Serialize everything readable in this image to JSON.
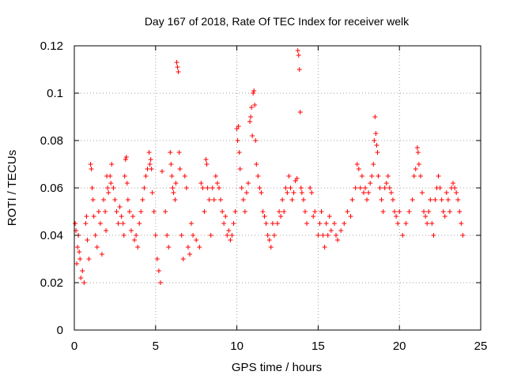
{
  "chart_data": {
    "type": "scatter",
    "title": "Day 167 of 2018, Rate Of TEC Index for receiver welk",
    "xlabel": "GPS time / hours",
    "ylabel": "ROTI / TECUs",
    "xlim": [
      0,
      25
    ],
    "ylim": [
      0,
      0.12
    ],
    "x_ticks": [
      0,
      5,
      10,
      15,
      20,
      25
    ],
    "x_tick_labels": [
      "0",
      "5",
      "10",
      "15",
      "20",
      "25"
    ],
    "y_ticks": [
      0,
      0.02,
      0.04,
      0.06,
      0.08,
      0.1,
      0.12
    ],
    "y_tick_labels": [
      "0",
      "0.02",
      "0.04",
      "0.06",
      "0.08",
      "0.1",
      "0.12"
    ],
    "grid": true,
    "marker": "+",
    "color": "#ff0000",
    "series": [
      {
        "name": "ROTI",
        "points": [
          [
            0.05,
            0.045
          ],
          [
            0.1,
            0.042
          ],
          [
            0.15,
            0.028
          ],
          [
            0.2,
            0.035
          ],
          [
            0.25,
            0.04
          ],
          [
            0.3,
            0.033
          ],
          [
            0.35,
            0.03
          ],
          [
            0.4,
            0.022
          ],
          [
            0.5,
            0.025
          ],
          [
            0.6,
            0.02
          ],
          [
            0.7,
            0.045
          ],
          [
            0.75,
            0.048
          ],
          [
            0.8,
            0.038
          ],
          [
            0.9,
            0.03
          ],
          [
            1.0,
            0.07
          ],
          [
            1.05,
            0.068
          ],
          [
            1.1,
            0.06
          ],
          [
            1.15,
            0.055
          ],
          [
            1.2,
            0.048
          ],
          [
            1.3,
            0.04
          ],
          [
            1.4,
            0.035
          ],
          [
            1.5,
            0.05
          ],
          [
            1.6,
            0.045
          ],
          [
            1.7,
            0.032
          ],
          [
            1.8,
            0.055
          ],
          [
            1.9,
            0.05
          ],
          [
            1.95,
            0.042
          ],
          [
            2.0,
            0.065
          ],
          [
            2.05,
            0.06
          ],
          [
            2.1,
            0.058
          ],
          [
            2.2,
            0.065
          ],
          [
            2.25,
            0.062
          ],
          [
            2.3,
            0.07
          ],
          [
            2.4,
            0.06
          ],
          [
            2.5,
            0.055
          ],
          [
            2.6,
            0.05
          ],
          [
            2.7,
            0.045
          ],
          [
            2.8,
            0.052
          ],
          [
            2.9,
            0.048
          ],
          [
            3.0,
            0.045
          ],
          [
            3.05,
            0.04
          ],
          [
            3.1,
            0.065
          ],
          [
            3.15,
            0.072
          ],
          [
            3.2,
            0.073
          ],
          [
            3.25,
            0.062
          ],
          [
            3.3,
            0.055
          ],
          [
            3.4,
            0.05
          ],
          [
            3.5,
            0.042
          ],
          [
            3.6,
            0.048
          ],
          [
            3.7,
            0.038
          ],
          [
            3.8,
            0.04
          ],
          [
            3.9,
            0.035
          ],
          [
            4.0,
            0.045
          ],
          [
            4.1,
            0.05
          ],
          [
            4.2,
            0.055
          ],
          [
            4.3,
            0.06
          ],
          [
            4.4,
            0.065
          ],
          [
            4.5,
            0.068
          ],
          [
            4.6,
            0.075
          ],
          [
            4.65,
            0.07
          ],
          [
            4.7,
            0.072
          ],
          [
            4.75,
            0.068
          ],
          [
            4.8,
            0.058
          ],
          [
            4.9,
            0.05
          ],
          [
            5.0,
            0.04
          ],
          [
            5.1,
            0.03
          ],
          [
            5.2,
            0.025
          ],
          [
            5.3,
            0.02
          ],
          [
            5.4,
            0.067
          ],
          [
            5.6,
            0.05
          ],
          [
            5.7,
            0.04
          ],
          [
            5.8,
            0.035
          ],
          [
            5.9,
            0.075
          ],
          [
            5.95,
            0.07
          ],
          [
            6.0,
            0.065
          ],
          [
            6.05,
            0.06
          ],
          [
            6.1,
            0.058
          ],
          [
            6.2,
            0.055
          ],
          [
            6.25,
            0.062
          ],
          [
            6.3,
            0.113
          ],
          [
            6.35,
            0.111
          ],
          [
            6.4,
            0.109
          ],
          [
            6.45,
            0.075
          ],
          [
            6.5,
            0.068
          ],
          [
            6.6,
            0.04
          ],
          [
            6.7,
            0.03
          ],
          [
            6.8,
            0.065
          ],
          [
            6.9,
            0.06
          ],
          [
            7.0,
            0.035
          ],
          [
            7.1,
            0.032
          ],
          [
            7.2,
            0.045
          ],
          [
            7.3,
            0.04
          ],
          [
            7.5,
            0.038
          ],
          [
            7.7,
            0.035
          ],
          [
            7.8,
            0.062
          ],
          [
            7.9,
            0.06
          ],
          [
            8.0,
            0.05
          ],
          [
            8.1,
            0.072
          ],
          [
            8.15,
            0.07
          ],
          [
            8.2,
            0.06
          ],
          [
            8.3,
            0.055
          ],
          [
            8.4,
            0.04
          ],
          [
            8.5,
            0.06
          ],
          [
            8.6,
            0.055
          ],
          [
            8.7,
            0.065
          ],
          [
            8.8,
            0.062
          ],
          [
            8.9,
            0.06
          ],
          [
            9.0,
            0.055
          ],
          [
            9.1,
            0.05
          ],
          [
            9.2,
            0.045
          ],
          [
            9.3,
            0.048
          ],
          [
            9.4,
            0.04
          ],
          [
            9.5,
            0.042
          ],
          [
            9.6,
            0.038
          ],
          [
            9.7,
            0.04
          ],
          [
            9.8,
            0.045
          ],
          [
            9.9,
            0.05
          ],
          [
            10.0,
            0.085
          ],
          [
            10.05,
            0.08
          ],
          [
            10.1,
            0.086
          ],
          [
            10.15,
            0.075
          ],
          [
            10.2,
            0.068
          ],
          [
            10.3,
            0.06
          ],
          [
            10.4,
            0.055
          ],
          [
            10.5,
            0.05
          ],
          [
            10.6,
            0.058
          ],
          [
            10.7,
            0.062
          ],
          [
            10.8,
            0.088
          ],
          [
            10.85,
            0.09
          ],
          [
            10.9,
            0.094
          ],
          [
            10.95,
            0.082
          ],
          [
            11.0,
            0.1
          ],
          [
            11.05,
            0.101
          ],
          [
            11.1,
            0.095
          ],
          [
            11.15,
            0.08
          ],
          [
            11.2,
            0.07
          ],
          [
            11.3,
            0.065
          ],
          [
            11.4,
            0.06
          ],
          [
            11.5,
            0.058
          ],
          [
            11.6,
            0.05
          ],
          [
            11.7,
            0.048
          ],
          [
            11.8,
            0.045
          ],
          [
            11.9,
            0.04
          ],
          [
            12.0,
            0.038
          ],
          [
            12.1,
            0.035
          ],
          [
            12.2,
            0.045
          ],
          [
            12.3,
            0.04
          ],
          [
            12.5,
            0.045
          ],
          [
            12.6,
            0.05
          ],
          [
            12.7,
            0.048
          ],
          [
            12.8,
            0.055
          ],
          [
            12.9,
            0.05
          ],
          [
            13.0,
            0.06
          ],
          [
            13.1,
            0.058
          ],
          [
            13.2,
            0.065
          ],
          [
            13.3,
            0.06
          ],
          [
            13.4,
            0.055
          ],
          [
            13.5,
            0.058
          ],
          [
            13.6,
            0.063
          ],
          [
            13.7,
            0.064
          ],
          [
            13.75,
            0.118
          ],
          [
            13.8,
            0.116
          ],
          [
            13.85,
            0.11
          ],
          [
            13.9,
            0.092
          ],
          [
            13.95,
            0.06
          ],
          [
            14.0,
            0.058
          ],
          [
            14.1,
            0.055
          ],
          [
            14.2,
            0.05
          ],
          [
            14.3,
            0.045
          ],
          [
            14.5,
            0.06
          ],
          [
            14.6,
            0.058
          ],
          [
            14.7,
            0.048
          ],
          [
            14.8,
            0.05
          ],
          [
            15.0,
            0.04
          ],
          [
            15.1,
            0.045
          ],
          [
            15.2,
            0.05
          ],
          [
            15.3,
            0.04
          ],
          [
            15.4,
            0.035
          ],
          [
            15.5,
            0.045
          ],
          [
            15.6,
            0.04
          ],
          [
            15.7,
            0.048
          ],
          [
            15.8,
            0.042
          ],
          [
            16.0,
            0.045
          ],
          [
            16.1,
            0.04
          ],
          [
            16.2,
            0.038
          ],
          [
            16.4,
            0.042
          ],
          [
            16.6,
            0.045
          ],
          [
            16.8,
            0.05
          ],
          [
            17.0,
            0.048
          ],
          [
            17.1,
            0.055
          ],
          [
            17.3,
            0.06
          ],
          [
            17.4,
            0.07
          ],
          [
            17.5,
            0.068
          ],
          [
            17.6,
            0.06
          ],
          [
            17.7,
            0.065
          ],
          [
            17.8,
            0.058
          ],
          [
            17.9,
            0.06
          ],
          [
            18.0,
            0.055
          ],
          [
            18.1,
            0.058
          ],
          [
            18.2,
            0.062
          ],
          [
            18.3,
            0.065
          ],
          [
            18.4,
            0.07
          ],
          [
            18.45,
            0.08
          ],
          [
            18.5,
            0.09
          ],
          [
            18.55,
            0.083
          ],
          [
            18.6,
            0.078
          ],
          [
            18.65,
            0.075
          ],
          [
            18.7,
            0.065
          ],
          [
            18.8,
            0.06
          ],
          [
            18.9,
            0.055
          ],
          [
            19.0,
            0.05
          ],
          [
            19.1,
            0.06
          ],
          [
            19.2,
            0.062
          ],
          [
            19.3,
            0.065
          ],
          [
            19.4,
            0.06
          ],
          [
            19.5,
            0.058
          ],
          [
            19.6,
            0.055
          ],
          [
            19.7,
            0.05
          ],
          [
            19.8,
            0.048
          ],
          [
            19.9,
            0.045
          ],
          [
            20.0,
            0.05
          ],
          [
            20.2,
            0.04
          ],
          [
            20.4,
            0.045
          ],
          [
            20.6,
            0.05
          ],
          [
            20.8,
            0.055
          ],
          [
            20.9,
            0.065
          ],
          [
            21.0,
            0.068
          ],
          [
            21.1,
            0.077
          ],
          [
            21.15,
            0.075
          ],
          [
            21.2,
            0.07
          ],
          [
            21.3,
            0.065
          ],
          [
            21.4,
            0.058
          ],
          [
            21.5,
            0.05
          ],
          [
            21.6,
            0.048
          ],
          [
            21.7,
            0.045
          ],
          [
            21.8,
            0.05
          ],
          [
            21.9,
            0.055
          ],
          [
            22.0,
            0.045
          ],
          [
            22.1,
            0.04
          ],
          [
            22.2,
            0.055
          ],
          [
            22.3,
            0.06
          ],
          [
            22.4,
            0.065
          ],
          [
            22.5,
            0.06
          ],
          [
            22.6,
            0.055
          ],
          [
            22.7,
            0.05
          ],
          [
            22.8,
            0.048
          ],
          [
            22.9,
            0.058
          ],
          [
            23.0,
            0.055
          ],
          [
            23.1,
            0.05
          ],
          [
            23.2,
            0.06
          ],
          [
            23.3,
            0.062
          ],
          [
            23.4,
            0.06
          ],
          [
            23.5,
            0.058
          ],
          [
            23.6,
            0.055
          ],
          [
            23.7,
            0.05
          ],
          [
            23.8,
            0.045
          ],
          [
            23.9,
            0.04
          ]
        ]
      }
    ]
  }
}
